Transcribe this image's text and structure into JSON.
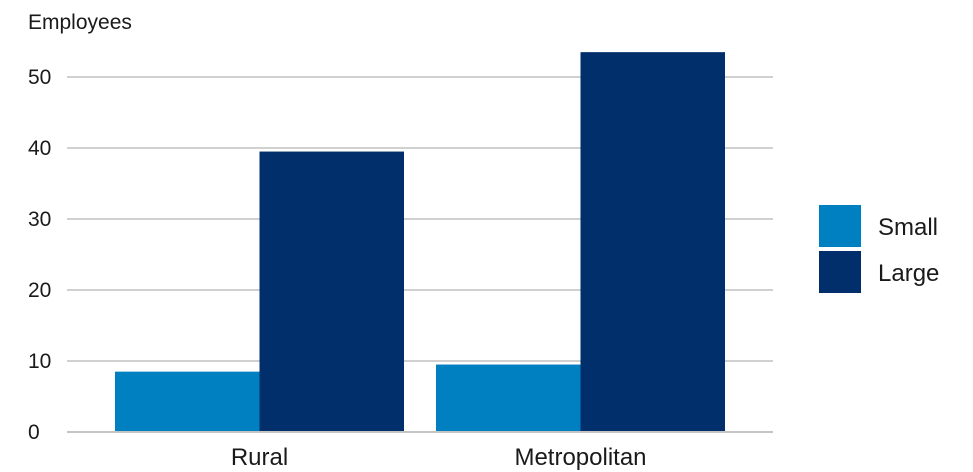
{
  "chart_data": {
    "type": "bar",
    "title": "",
    "ylabel": "Employees",
    "xlabel": "",
    "categories": [
      "Rural",
      "Metropolitan"
    ],
    "series": [
      {
        "name": "Small",
        "values": [
          8.5,
          9.5
        ],
        "color": "#0080c0"
      },
      {
        "name": "Large",
        "values": [
          39.5,
          53.5
        ],
        "color": "#002f6c"
      }
    ],
    "ylim": [
      0,
      50
    ],
    "yticks": [
      "0",
      "10",
      "20",
      "30",
      "40",
      "50"
    ],
    "grid": true,
    "legend_position": "right"
  }
}
